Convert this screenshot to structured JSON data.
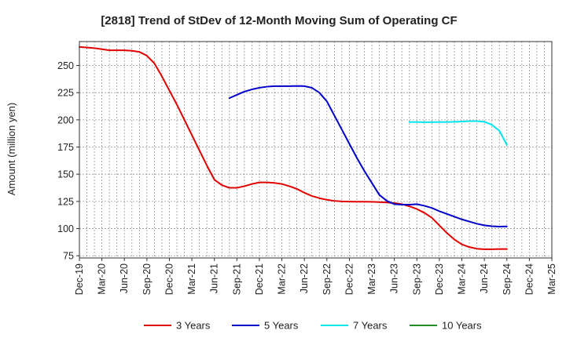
{
  "chart_data": {
    "type": "line",
    "title": "[2818]  Trend of StDev of 12-Month Moving Sum of Operating CF",
    "ylabel": "Amount (million yen)",
    "xlabel": "",
    "ylim": [
      73,
      272
    ],
    "y_ticks": [
      75,
      100,
      125,
      150,
      175,
      200,
      225,
      250
    ],
    "x_tick_labels": [
      "Dec-19",
      "Mar-20",
      "Jun-20",
      "Sep-20",
      "Dec-20",
      "Mar-21",
      "Jun-21",
      "Sep-21",
      "Dec-21",
      "Mar-22",
      "Jun-22",
      "Sep-22",
      "Dec-22",
      "Mar-23",
      "Jun-23",
      "Sep-23",
      "Dec-23",
      "Mar-24",
      "Jun-24",
      "Sep-24",
      "Dec-24",
      "Mar-25"
    ],
    "x_range_months": [
      0,
      63
    ],
    "grid": true,
    "legend_position": "bottom",
    "series": [
      {
        "name": "3 Years",
        "color": "#e00000",
        "x": [
          0,
          1,
          2,
          3,
          4,
          5,
          6,
          7,
          8,
          9,
          10,
          11,
          12,
          13,
          14,
          15,
          16,
          17,
          18,
          19,
          20,
          21,
          22,
          23,
          24,
          25,
          26,
          27,
          28,
          29,
          30,
          31,
          32,
          33,
          34,
          35,
          36,
          37,
          38,
          39,
          40,
          41,
          42,
          43,
          44,
          45,
          46,
          47,
          48,
          49,
          50,
          51,
          52,
          53,
          54,
          55,
          56,
          57
        ],
        "values": [
          267,
          266.5,
          266,
          265,
          264,
          264,
          264,
          263.5,
          262.5,
          259,
          252,
          240,
          227,
          214,
          200,
          186,
          172,
          158,
          145,
          140,
          137.5,
          137.5,
          139,
          141,
          142.5,
          142.5,
          142,
          141,
          139,
          136.5,
          133,
          130,
          128,
          126.5,
          125.5,
          125,
          124.8,
          124.7,
          124.7,
          124.6,
          124.4,
          124,
          123.5,
          122.5,
          120.5,
          118,
          114.5,
          110,
          103,
          96,
          90,
          85.5,
          83,
          81.5,
          81,
          81,
          81.2,
          81.2
        ]
      },
      {
        "name": "5 Years",
        "color": "#0000c8",
        "x": [
          20,
          21,
          22,
          23,
          24,
          25,
          26,
          27,
          28,
          29,
          30,
          31,
          32,
          33,
          34,
          35,
          36,
          37,
          38,
          39,
          40,
          41,
          42,
          43,
          44,
          45,
          46,
          47,
          48,
          49,
          50,
          51,
          52,
          53,
          54,
          55,
          56,
          57
        ],
        "values": [
          220,
          223,
          226,
          228,
          229.5,
          230.5,
          231,
          231,
          231,
          231.2,
          231,
          229.5,
          225,
          217,
          204,
          191,
          178,
          165,
          153,
          142,
          131,
          125.5,
          122.5,
          122,
          122,
          122.5,
          121,
          119,
          116,
          113.5,
          111,
          108.5,
          106.5,
          104.5,
          103,
          102.2,
          101.8,
          102
        ]
      },
      {
        "name": "7 Years",
        "color": "#00e5ee",
        "x": [
          44,
          45,
          46,
          47,
          48,
          49,
          50,
          51,
          52,
          53,
          54,
          55,
          56,
          57
        ],
        "values": [
          198,
          198,
          197.8,
          197.9,
          198,
          198,
          198.2,
          198.5,
          198.8,
          198.8,
          198.2,
          195.5,
          190,
          177
        ]
      },
      {
        "name": "10 Years",
        "color": "#228b22",
        "x": [],
        "values": []
      }
    ]
  }
}
